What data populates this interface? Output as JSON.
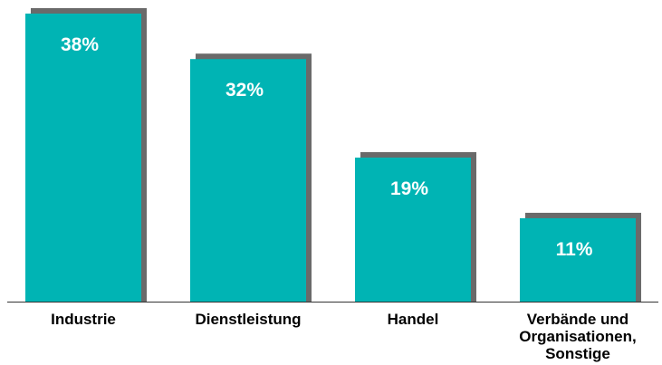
{
  "chart_data": {
    "type": "bar",
    "categories": [
      [
        "Industrie"
      ],
      [
        "Dienstleistung"
      ],
      [
        "Handel"
      ],
      [
        "Verbände und",
        "Organisationen,",
        "Sonstige"
      ]
    ],
    "values": [
      38,
      32,
      19,
      11
    ],
    "data_labels": [
      "38%",
      "32%",
      "19%",
      "11%"
    ],
    "title": "",
    "xlabel": "",
    "ylabel": "",
    "ylim": [
      0,
      38
    ],
    "grid": false,
    "legend": "none",
    "colors": {
      "bar": "#00B4B4",
      "shadow": "#6A6A6A",
      "axis": "#333333",
      "label": "#FFFFFF",
      "category_text": "#000000"
    }
  }
}
